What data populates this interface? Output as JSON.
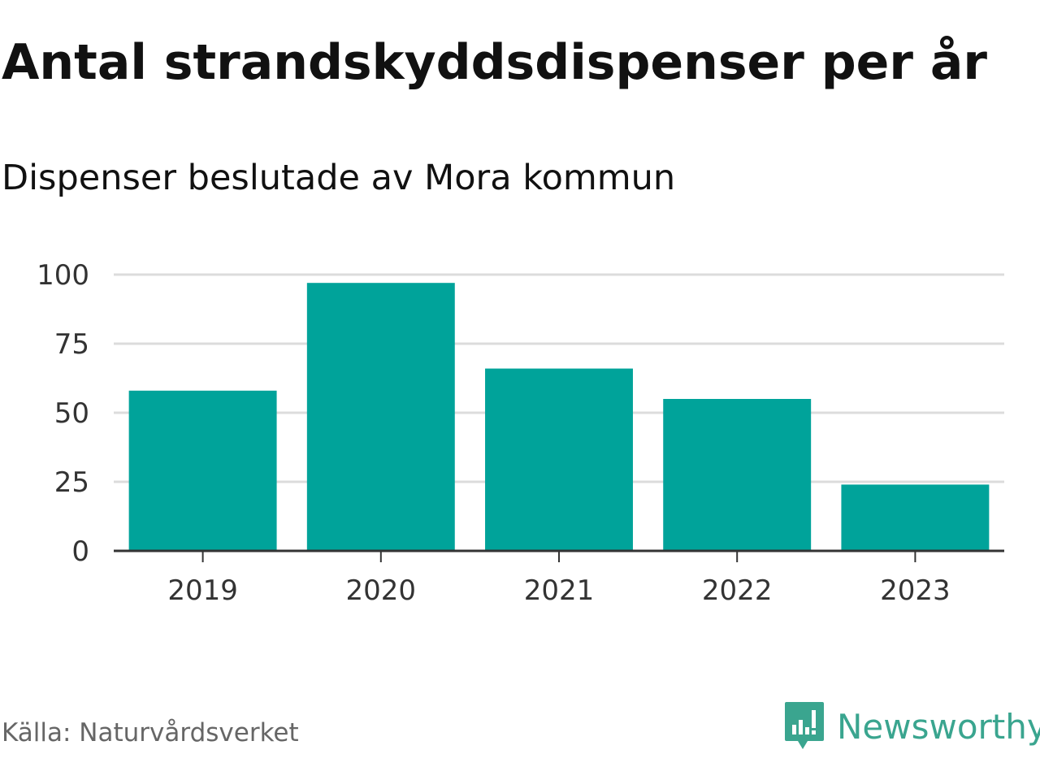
{
  "title": "Antal strandskyddsdispenser per år",
  "subtitle": "Dispenser beslutade av Mora kommun",
  "source": "Källa: Naturvårdsverket",
  "brand": {
    "name": "Newsworthy",
    "icon": "newsworthy-logo-icon",
    "color": "#3aa58f"
  },
  "chart_data": {
    "type": "bar",
    "title": "Antal strandskyddsdispenser per år",
    "subtitle": "Dispenser beslutade av Mora kommun",
    "xlabel": "",
    "ylabel": "",
    "categories": [
      "2019",
      "2020",
      "2021",
      "2022",
      "2023"
    ],
    "values": [
      58,
      97,
      66,
      55,
      24
    ],
    "ylim": [
      0,
      100
    ],
    "yticks": [
      "0",
      "25",
      "50",
      "75",
      "100"
    ],
    "grid": true,
    "bar_color": "#00a39a"
  }
}
